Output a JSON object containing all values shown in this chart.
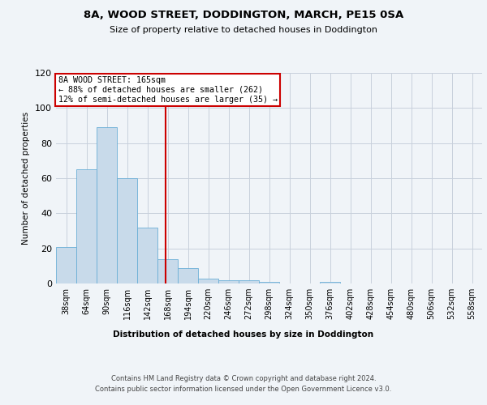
{
  "title": "8A, WOOD STREET, DODDINGTON, MARCH, PE15 0SA",
  "subtitle": "Size of property relative to detached houses in Doddington",
  "xlabel": "Distribution of detached houses by size in Doddington",
  "ylabel": "Number of detached properties",
  "bar_labels": [
    "38sqm",
    "64sqm",
    "90sqm",
    "116sqm",
    "142sqm",
    "168sqm",
    "194sqm",
    "220sqm",
    "246sqm",
    "272sqm",
    "298sqm",
    "324sqm",
    "350sqm",
    "376sqm",
    "402sqm",
    "428sqm",
    "454sqm",
    "480sqm",
    "506sqm",
    "532sqm",
    "558sqm"
  ],
  "bar_values": [
    21,
    65,
    89,
    60,
    32,
    14,
    9,
    3,
    2,
    2,
    1,
    0,
    0,
    1,
    0,
    0,
    0,
    0,
    0,
    0,
    0
  ],
  "bar_color": "#c8daea",
  "bar_edge_color": "#6aaed6",
  "grid_color": "#c8d0dc",
  "background_color": "#f0f4f8",
  "plot_bg_color": "#f0f4f8",
  "annotation_box_text": "8A WOOD STREET: 165sqm\n← 88% of detached houses are smaller (262)\n12% of semi-detached houses are larger (35) →",
  "annotation_box_color": "#cc0000",
  "ylim": [
    0,
    120
  ],
  "yticks": [
    0,
    20,
    40,
    60,
    80,
    100,
    120
  ],
  "footer_line1": "Contains HM Land Registry data © Crown copyright and database right 2024.",
  "footer_line2": "Contains public sector information licensed under the Open Government Licence v3.0."
}
